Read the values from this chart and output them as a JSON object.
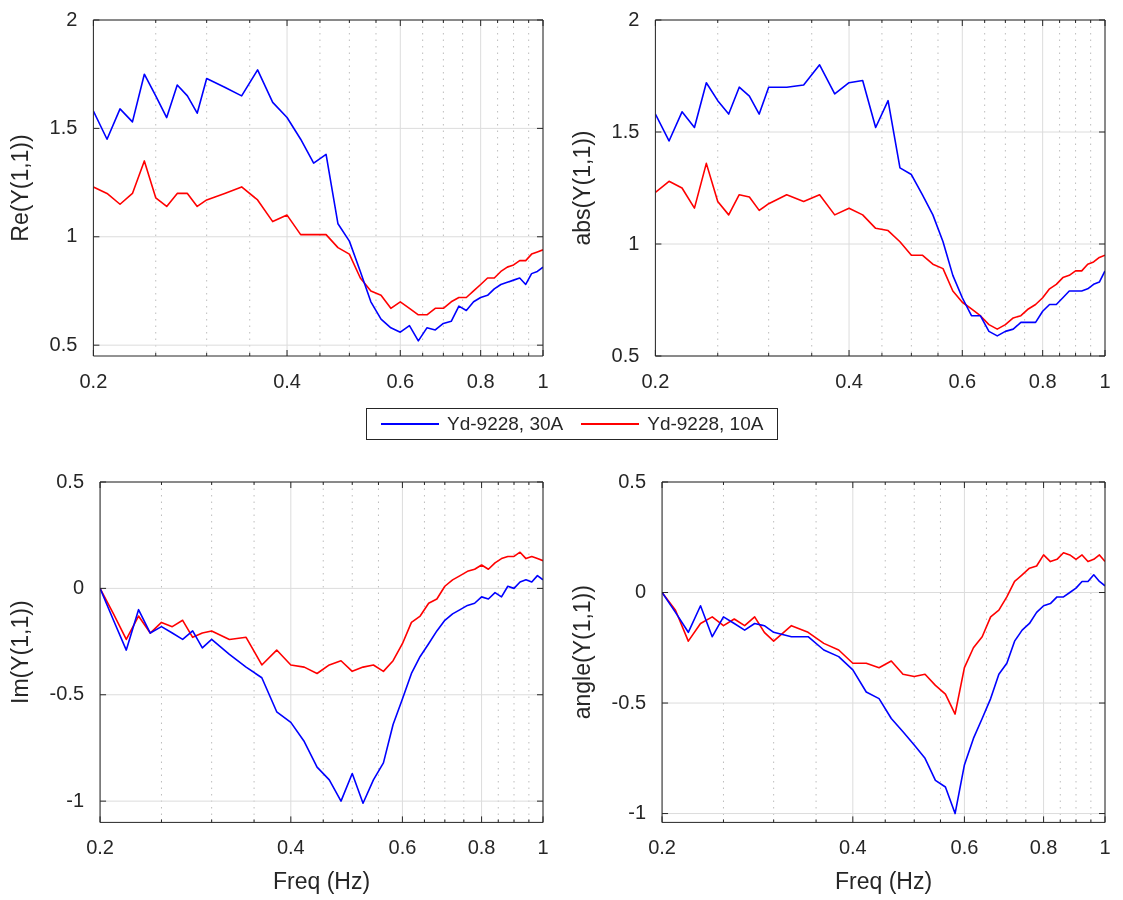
{
  "chart_data": [
    {
      "type": "line",
      "ylabel": "Re(Y(1,1))",
      "log": "x",
      "grid": true,
      "legend": "bottom",
      "xlim": [
        0.2,
        1
      ],
      "ylim": [
        0.45,
        2
      ],
      "xticks": [
        0.2,
        {
          "value": 0.25,
          "label": null
        },
        {
          "value": 0.3,
          "label": null
        },
        {
          "value": 0.35,
          "label": null
        },
        0.4,
        {
          "value": 0.45,
          "label": null
        },
        {
          "value": 0.5,
          "label": null
        },
        {
          "value": 0.55,
          "label": null
        },
        0.6,
        {
          "value": 0.65,
          "label": null
        },
        {
          "value": 0.7,
          "label": null
        },
        {
          "value": 0.75,
          "label": null
        },
        0.8,
        {
          "value": 0.85,
          "label": null
        },
        {
          "value": 0.9,
          "label": null
        },
        {
          "value": 0.95,
          "label": null
        },
        1
      ],
      "yticks": [
        0.5,
        1,
        1.5,
        2
      ],
      "x": [
        0.2,
        0.21,
        0.22,
        0.23,
        0.24,
        0.25,
        0.26,
        0.27,
        0.28,
        0.29,
        0.3,
        0.32,
        0.34,
        0.36,
        0.38,
        0.4,
        0.42,
        0.44,
        0.46,
        0.48,
        0.5,
        0.52,
        0.54,
        0.56,
        0.58,
        0.6,
        0.62,
        0.64,
        0.66,
        0.68,
        0.7,
        0.72,
        0.74,
        0.76,
        0.78,
        0.8,
        0.82,
        0.84,
        0.86,
        0.88,
        0.9,
        0.92,
        0.94,
        0.96,
        0.98,
        1
      ],
      "series": [
        {
          "name": "Yd-9228, 30A",
          "color": "#0000ff",
          "values": [
            1.58,
            1.45,
            1.59,
            1.53,
            1.75,
            1.65,
            1.55,
            1.7,
            1.65,
            1.57,
            1.73,
            1.69,
            1.65,
            1.77,
            1.62,
            1.55,
            1.45,
            1.34,
            1.38,
            1.06,
            0.98,
            0.84,
            0.7,
            0.62,
            0.58,
            0.56,
            0.59,
            0.52,
            0.58,
            0.57,
            0.6,
            0.61,
            0.68,
            0.66,
            0.7,
            0.72,
            0.73,
            0.76,
            0.78,
            0.79,
            0.8,
            0.81,
            0.78,
            0.83,
            0.84,
            0.86
          ]
        },
        {
          "name": "Yd-9228, 10A",
          "color": "#ff0000",
          "values": [
            1.23,
            1.2,
            1.15,
            1.2,
            1.35,
            1.18,
            1.14,
            1.2,
            1.2,
            1.14,
            1.17,
            1.2,
            1.23,
            1.17,
            1.07,
            1.1,
            1.01,
            1.01,
            1.01,
            0.95,
            0.92,
            0.81,
            0.75,
            0.73,
            0.67,
            0.7,
            0.67,
            0.64,
            0.64,
            0.67,
            0.67,
            0.7,
            0.72,
            0.72,
            0.75,
            0.78,
            0.81,
            0.81,
            0.84,
            0.86,
            0.87,
            0.89,
            0.89,
            0.92,
            0.93,
            0.94
          ]
        }
      ]
    },
    {
      "type": "line",
      "ylabel": "abs(Y(1,1))",
      "log": "x",
      "grid": true,
      "xlim": [
        0.2,
        1
      ],
      "ylim": [
        0.5,
        2
      ],
      "xticks": [
        0.2,
        {
          "value": 0.25,
          "label": null
        },
        {
          "value": 0.3,
          "label": null
        },
        {
          "value": 0.35,
          "label": null
        },
        0.4,
        {
          "value": 0.45,
          "label": null
        },
        {
          "value": 0.5,
          "label": null
        },
        {
          "value": 0.55,
          "label": null
        },
        0.6,
        {
          "value": 0.65,
          "label": null
        },
        {
          "value": 0.7,
          "label": null
        },
        {
          "value": 0.75,
          "label": null
        },
        0.8,
        {
          "value": 0.85,
          "label": null
        },
        {
          "value": 0.9,
          "label": null
        },
        {
          "value": 0.95,
          "label": null
        },
        1
      ],
      "yticks": [
        0.5,
        1,
        1.5,
        2
      ],
      "x": [
        0.2,
        0.21,
        0.22,
        0.23,
        0.24,
        0.25,
        0.26,
        0.27,
        0.28,
        0.29,
        0.3,
        0.32,
        0.34,
        0.36,
        0.38,
        0.4,
        0.42,
        0.44,
        0.46,
        0.48,
        0.5,
        0.52,
        0.54,
        0.56,
        0.58,
        0.6,
        0.62,
        0.64,
        0.66,
        0.68,
        0.7,
        0.72,
        0.74,
        0.76,
        0.78,
        0.8,
        0.82,
        0.84,
        0.86,
        0.88,
        0.9,
        0.92,
        0.94,
        0.96,
        0.98,
        1
      ],
      "series": [
        {
          "color": "#0000ff",
          "values": [
            1.58,
            1.46,
            1.59,
            1.52,
            1.72,
            1.64,
            1.58,
            1.7,
            1.66,
            1.58,
            1.7,
            1.7,
            1.71,
            1.8,
            1.67,
            1.72,
            1.73,
            1.52,
            1.64,
            1.34,
            1.31,
            1.22,
            1.13,
            1.01,
            0.86,
            0.76,
            0.68,
            0.68,
            0.61,
            0.59,
            0.61,
            0.62,
            0.65,
            0.65,
            0.65,
            0.7,
            0.73,
            0.73,
            0.76,
            0.79,
            0.79,
            0.79,
            0.8,
            0.82,
            0.83,
            0.88
          ]
        },
        {
          "color": "#ff0000",
          "values": [
            1.23,
            1.28,
            1.25,
            1.16,
            1.36,
            1.19,
            1.13,
            1.22,
            1.21,
            1.15,
            1.18,
            1.22,
            1.19,
            1.22,
            1.13,
            1.16,
            1.13,
            1.07,
            1.06,
            1.01,
            0.95,
            0.95,
            0.91,
            0.89,
            0.79,
            0.74,
            0.71,
            0.68,
            0.64,
            0.62,
            0.64,
            0.67,
            0.68,
            0.71,
            0.73,
            0.76,
            0.8,
            0.82,
            0.85,
            0.86,
            0.88,
            0.88,
            0.91,
            0.92,
            0.94,
            0.95
          ]
        }
      ]
    },
    {
      "type": "line",
      "ylabel": "Im(Y(1,1))",
      "xlabel": "Freq (Hz)",
      "log": "x",
      "grid": true,
      "xlim": [
        0.2,
        1
      ],
      "ylim": [
        -1.1,
        0.5
      ],
      "xticks": [
        0.2,
        {
          "value": 0.25,
          "label": null
        },
        {
          "value": 0.3,
          "label": null
        },
        {
          "value": 0.35,
          "label": null
        },
        0.4,
        {
          "value": 0.45,
          "label": null
        },
        {
          "value": 0.5,
          "label": null
        },
        {
          "value": 0.55,
          "label": null
        },
        0.6,
        {
          "value": 0.65,
          "label": null
        },
        {
          "value": 0.7,
          "label": null
        },
        {
          "value": 0.75,
          "label": null
        },
        0.8,
        {
          "value": 0.85,
          "label": null
        },
        {
          "value": 0.9,
          "label": null
        },
        {
          "value": 0.95,
          "label": null
        },
        1
      ],
      "yticks": [
        -1,
        -0.5,
        0,
        0.5
      ],
      "x": [
        0.2,
        0.21,
        0.22,
        0.23,
        0.24,
        0.25,
        0.26,
        0.27,
        0.28,
        0.29,
        0.3,
        0.32,
        0.34,
        0.36,
        0.38,
        0.4,
        0.42,
        0.44,
        0.46,
        0.48,
        0.5,
        0.52,
        0.54,
        0.56,
        0.58,
        0.6,
        0.62,
        0.64,
        0.66,
        0.68,
        0.7,
        0.72,
        0.74,
        0.76,
        0.78,
        0.8,
        0.82,
        0.84,
        0.86,
        0.88,
        0.9,
        0.92,
        0.94,
        0.96,
        0.98,
        1
      ],
      "series": [
        {
          "color": "#0000ff",
          "values": [
            0,
            -0.15,
            -0.29,
            -0.1,
            -0.21,
            -0.18,
            -0.21,
            -0.24,
            -0.2,
            -0.28,
            -0.24,
            -0.31,
            -0.37,
            -0.42,
            -0.58,
            -0.63,
            -0.72,
            -0.84,
            -0.9,
            -1,
            -0.87,
            -1.01,
            -0.9,
            -0.82,
            -0.64,
            -0.52,
            -0.4,
            -0.32,
            -0.26,
            -0.2,
            -0.15,
            -0.12,
            -0.1,
            -0.08,
            -0.07,
            -0.04,
            -0.05,
            -0.02,
            -0.04,
            0.01,
            0,
            0.03,
            0.04,
            0.03,
            0.06,
            0.04
          ]
        },
        {
          "color": "#ff0000",
          "values": [
            0,
            -0.12,
            -0.24,
            -0.13,
            -0.21,
            -0.16,
            -0.18,
            -0.15,
            -0.23,
            -0.21,
            -0.2,
            -0.24,
            -0.23,
            -0.36,
            -0.29,
            -0.36,
            -0.37,
            -0.4,
            -0.36,
            -0.34,
            -0.39,
            -0.37,
            -0.36,
            -0.39,
            -0.34,
            -0.26,
            -0.16,
            -0.13,
            -0.07,
            -0.05,
            0.01,
            0.04,
            0.06,
            0.08,
            0.09,
            0.11,
            0.09,
            0.12,
            0.14,
            0.15,
            0.15,
            0.17,
            0.14,
            0.15,
            0.14,
            0.13
          ]
        }
      ]
    },
    {
      "type": "line",
      "ylabel": "angle(Y(1,1))",
      "xlabel": "Freq (Hz)",
      "log": "x",
      "grid": true,
      "xlim": [
        0.2,
        1
      ],
      "ylim": [
        -1.04,
        0.5
      ],
      "xticks": [
        0.2,
        {
          "value": 0.25,
          "label": null
        },
        {
          "value": 0.3,
          "label": null
        },
        {
          "value": 0.35,
          "label": null
        },
        0.4,
        {
          "value": 0.45,
          "label": null
        },
        {
          "value": 0.5,
          "label": null
        },
        {
          "value": 0.55,
          "label": null
        },
        0.6,
        {
          "value": 0.65,
          "label": null
        },
        {
          "value": 0.7,
          "label": null
        },
        {
          "value": 0.75,
          "label": null
        },
        0.8,
        {
          "value": 0.85,
          "label": null
        },
        {
          "value": 0.9,
          "label": null
        },
        {
          "value": 0.95,
          "label": null
        },
        1
      ],
      "yticks": [
        -1,
        -0.5,
        0,
        0.5
      ],
      "x": [
        0.2,
        0.21,
        0.22,
        0.23,
        0.24,
        0.25,
        0.26,
        0.27,
        0.28,
        0.29,
        0.3,
        0.32,
        0.34,
        0.36,
        0.38,
        0.4,
        0.42,
        0.44,
        0.46,
        0.48,
        0.5,
        0.52,
        0.54,
        0.56,
        0.58,
        0.6,
        0.62,
        0.64,
        0.66,
        0.68,
        0.7,
        0.72,
        0.74,
        0.76,
        0.78,
        0.8,
        0.82,
        0.84,
        0.86,
        0.88,
        0.9,
        0.92,
        0.94,
        0.96,
        0.98,
        1
      ],
      "series": [
        {
          "color": "#0000ff",
          "values": [
            0,
            -0.09,
            -0.18,
            -0.06,
            -0.2,
            -0.11,
            -0.14,
            -0.17,
            -0.14,
            -0.15,
            -0.18,
            -0.2,
            -0.2,
            -0.26,
            -0.29,
            -0.35,
            -0.45,
            -0.48,
            -0.57,
            -0.63,
            -0.69,
            -0.75,
            -0.85,
            -0.88,
            -1,
            -0.78,
            -0.66,
            -0.57,
            -0.48,
            -0.37,
            -0.32,
            -0.22,
            -0.17,
            -0.14,
            -0.09,
            -0.06,
            -0.05,
            -0.02,
            -0.02,
            0,
            0.02,
            0.05,
            0.05,
            0.08,
            0.05,
            0.03
          ]
        },
        {
          "color": "#ff0000",
          "values": [
            0,
            -0.08,
            -0.22,
            -0.14,
            -0.11,
            -0.15,
            -0.12,
            -0.15,
            -0.11,
            -0.18,
            -0.22,
            -0.15,
            -0.18,
            -0.23,
            -0.26,
            -0.32,
            -0.32,
            -0.34,
            -0.31,
            -0.37,
            -0.38,
            -0.37,
            -0.42,
            -0.46,
            -0.55,
            -0.34,
            -0.25,
            -0.2,
            -0.11,
            -0.08,
            -0.02,
            0.05,
            0.08,
            0.11,
            0.12,
            0.17,
            0.14,
            0.15,
            0.18,
            0.17,
            0.15,
            0.17,
            0.14,
            0.15,
            0.17,
            0.14
          ]
        }
      ]
    }
  ]
}
